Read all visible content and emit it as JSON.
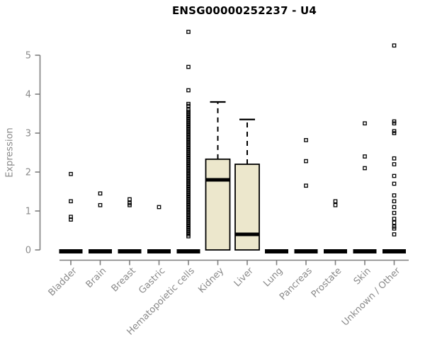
{
  "chart_data": {
    "type": "boxplot",
    "title": "ENSG00000252237 - U4",
    "ylabel": "Expression",
    "xlabel": "",
    "ylim": [
      0,
      5
    ],
    "yticks": [
      0,
      1,
      2,
      3,
      4,
      5
    ],
    "grid": false,
    "legend": false,
    "categories": [
      "Bladder",
      "Brain",
      "Breast",
      "Gastric",
      "Hematopoietic cells",
      "Kidney",
      "Liver",
      "Lung",
      "Pancreas",
      "Prostate",
      "Skin",
      "Unknown / Other"
    ],
    "boxes": [
      {
        "category": "Bladder",
        "q1": 0,
        "median": 0,
        "q3": 0,
        "whisker_low": 0,
        "whisker_high": 0,
        "outliers": [
          1.95,
          1.25,
          0.85,
          0.78
        ]
      },
      {
        "category": "Brain",
        "q1": 0,
        "median": 0,
        "q3": 0,
        "whisker_low": 0,
        "whisker_high": 0,
        "outliers": [
          1.45,
          1.15
        ]
      },
      {
        "category": "Breast",
        "q1": 0,
        "median": 0,
        "q3": 0,
        "whisker_low": 0,
        "whisker_high": 0,
        "outliers": [
          1.3,
          1.2,
          1.15
        ]
      },
      {
        "category": "Gastric",
        "q1": 0,
        "median": 0,
        "q3": 0,
        "whisker_low": 0,
        "whisker_high": 0,
        "outliers": [
          1.1
        ]
      },
      {
        "category": "Hematopoietic cells",
        "q1": 0,
        "median": 0,
        "q3": 0,
        "whisker_low": 0,
        "whisker_high": 0,
        "outliers": [
          5.6,
          4.7,
          4.1,
          3.75,
          3.7,
          3.6,
          3.55,
          3.5,
          3.45,
          3.4,
          3.35,
          3.3,
          3.25,
          3.2,
          3.15,
          3.1,
          3.05,
          3.0,
          2.95,
          2.9,
          2.85,
          2.8,
          2.75,
          2.7,
          2.65,
          2.6,
          2.55,
          2.5,
          2.45,
          2.4,
          2.35,
          2.3,
          2.25,
          2.2,
          2.15,
          2.1,
          2.05,
          2.0,
          1.95,
          1.9,
          1.85,
          1.8,
          1.75,
          1.7,
          1.65,
          1.6,
          1.55,
          1.5,
          1.45,
          1.4,
          1.35,
          1.3,
          1.25,
          1.2,
          1.15,
          1.1,
          1.05,
          1.0,
          0.95,
          0.9,
          0.85,
          0.8,
          0.75,
          0.7,
          0.65,
          0.6,
          0.55,
          0.5,
          0.45,
          0.4,
          0.35
        ]
      },
      {
        "category": "Kidney",
        "q1": 0,
        "median": 1.8,
        "q3": 2.33,
        "whisker_low": 0,
        "whisker_high": 3.8,
        "outliers": []
      },
      {
        "category": "Liver",
        "q1": 0,
        "median": 0.4,
        "q3": 2.2,
        "whisker_low": 0,
        "whisker_high": 3.35,
        "outliers": []
      },
      {
        "category": "Lung",
        "q1": 0,
        "median": 0,
        "q3": 0,
        "whisker_low": 0,
        "whisker_high": 0,
        "outliers": []
      },
      {
        "category": "Pancreas",
        "q1": 0,
        "median": 0,
        "q3": 0,
        "whisker_low": 0,
        "whisker_high": 0,
        "outliers": [
          2.82,
          2.28,
          1.65
        ]
      },
      {
        "category": "Prostate",
        "q1": 0,
        "median": 0,
        "q3": 0,
        "whisker_low": 0,
        "whisker_high": 0,
        "outliers": [
          1.25,
          1.15
        ]
      },
      {
        "category": "Skin",
        "q1": 0,
        "median": 0,
        "q3": 0,
        "whisker_low": 0,
        "whisker_high": 0,
        "outliers": [
          3.25,
          2.4,
          2.1
        ]
      },
      {
        "category": "Unknown / Other",
        "q1": 0,
        "median": 0,
        "q3": 0,
        "whisker_low": 0,
        "whisker_high": 0,
        "outliers": [
          5.25,
          3.3,
          3.25,
          3.05,
          3.0,
          2.35,
          2.2,
          1.9,
          1.7,
          1.4,
          1.25,
          1.1,
          0.95,
          0.8,
          0.7,
          0.6,
          0.55,
          0.4
        ]
      }
    ],
    "colors": {
      "box_fill": "#ece7cc",
      "box_border": "#000000",
      "median": "#000000",
      "whisker": "#000000",
      "outlier": "#000000",
      "axis_line": "#7f7f7f",
      "tick_label": "#8a8a8a",
      "title": "#000000"
    }
  }
}
